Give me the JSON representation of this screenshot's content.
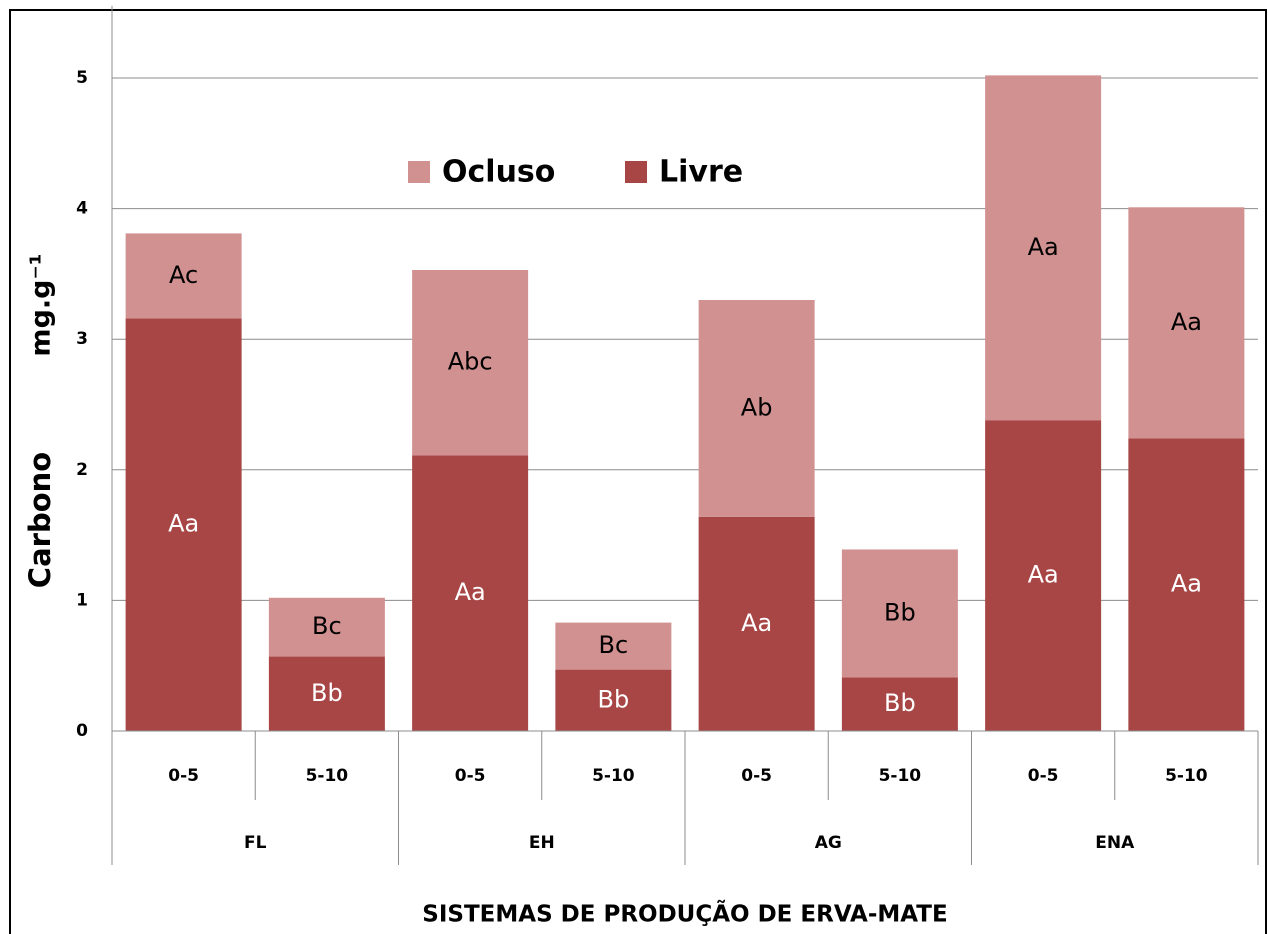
{
  "chart_data": {
    "type": "stacked_bar",
    "x_label": "SISTEMAS DE PRODUÇÃO DE ERVA-MATE",
    "y_label": "Carbono",
    "y_unit": "mg.g⁻¹",
    "groups": [
      "FL",
      "EH",
      "AG",
      "ENA"
    ],
    "categories": [
      "0-5",
      "5-10",
      "0-5",
      "5-10",
      "0-5",
      "5-10",
      "0-5",
      "5-10"
    ],
    "series": [
      {
        "name": "Livre",
        "color": "#a84646",
        "label_color": "#ffffff",
        "values": [
          3.16,
          0.57,
          2.11,
          0.47,
          1.64,
          0.41,
          2.38,
          2.24
        ],
        "labels": [
          "Aa",
          "Bb",
          "Aa",
          "Bb",
          "Aa",
          "Bb",
          "Aa",
          "Aa"
        ]
      },
      {
        "name": "Ocluso",
        "color": "#d09190",
        "label_color": "#000000",
        "values": [
          0.65,
          0.45,
          1.42,
          0.36,
          1.66,
          0.98,
          2.64,
          1.77
        ],
        "labels": [
          "Ac",
          "Bc",
          "Abc",
          "Bc",
          "Ab",
          "Bb",
          "Aa",
          "Aa"
        ]
      }
    ],
    "ylim": [
      0,
      5.4
    ],
    "yticks": [
      0,
      1,
      2,
      3,
      4,
      5
    ],
    "grid": true,
    "legend": "top"
  }
}
